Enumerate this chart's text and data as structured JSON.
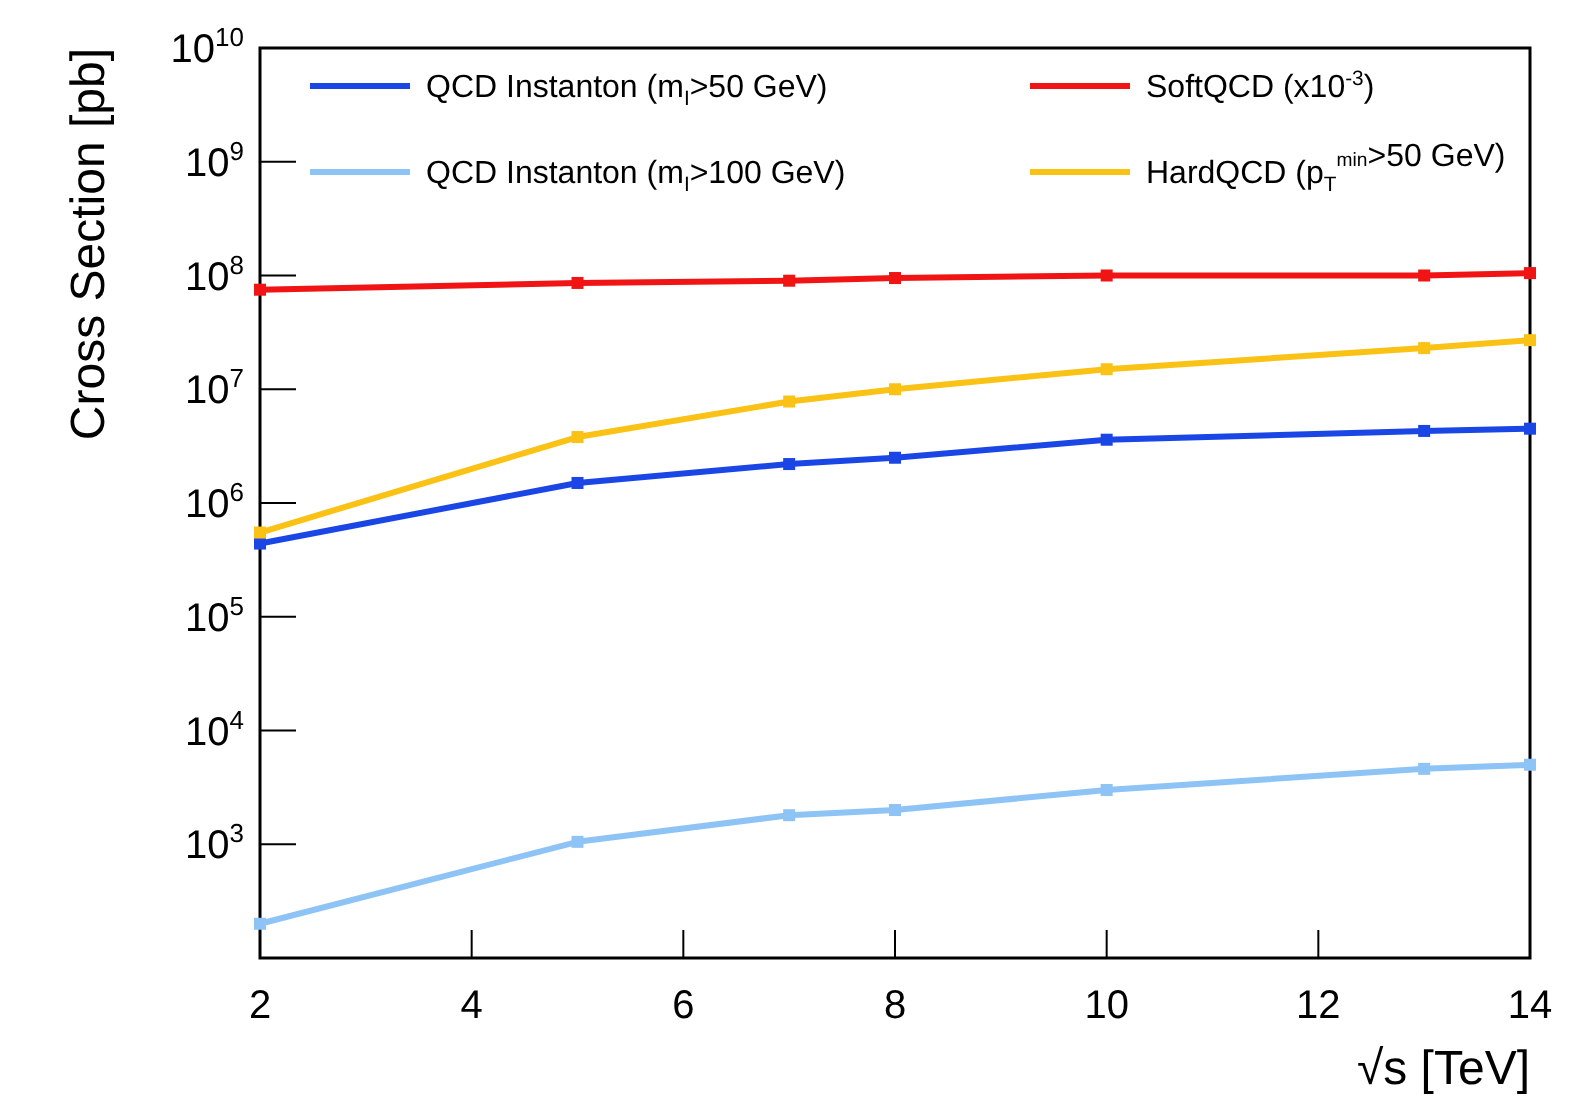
{
  "chart_data": {
    "type": "line",
    "xlabel": "√s [TeV]",
    "ylabel": "Cross Section [pb]",
    "log": "y",
    "xlim": [
      2,
      14
    ],
    "xticks": [
      2,
      4,
      6,
      8,
      10,
      12,
      14
    ],
    "ylim": [
      100,
      10000000000
    ],
    "yticks": [
      {
        "value": 1000,
        "label": "10$^{3}$"
      },
      {
        "value": 10000,
        "label": "10$^{4}$"
      },
      {
        "value": 100000,
        "label": "10$^{5}$"
      },
      {
        "value": 1000000,
        "label": "10$^{6}$"
      },
      {
        "value": 10000000,
        "label": "10$^{7}$"
      },
      {
        "value": 100000000,
        "label": "10$^{8}$"
      },
      {
        "value": 1000000000,
        "label": "10$^{9}$"
      },
      {
        "value": 10000000000,
        "label": "10$^{10}$"
      }
    ],
    "grid": false,
    "legend": "top",
    "marker": "square",
    "line_style": "solid",
    "x": [
      2,
      5,
      7,
      8,
      10,
      13,
      14
    ],
    "series": [
      {
        "name": "QCD Instanton (m$_{I}$>50 GeV)",
        "color": "#1a46e6",
        "values": [
          440000,
          1500000,
          2200000,
          2500000,
          3600000,
          4300000,
          4500000
        ]
      },
      {
        "name": "SoftQCD (x10$^{-3}$)",
        "color": "#f01414",
        "values": [
          75000000,
          86000000,
          90000000,
          95000000,
          100000000,
          100000000,
          105000000
        ]
      },
      {
        "name": "QCD Instanton (m$_{I}$>100 GeV)",
        "color": "#8ec4f5",
        "values": [
          200,
          1050,
          1800,
          2000,
          3000,
          4600,
          5000
        ]
      },
      {
        "name": "HardQCD (p$_{T}$$^{min}$>50 GeV)",
        "color": "#fac214",
        "values": [
          550000,
          3800000,
          7800000,
          10000000,
          15000000,
          23000000,
          27000000
        ]
      }
    ]
  }
}
